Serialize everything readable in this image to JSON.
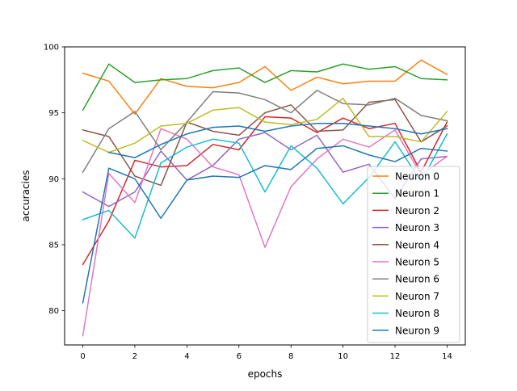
{
  "chart_data": {
    "type": "line",
    "title": "",
    "xlabel": "epochs",
    "ylabel": "accuracies",
    "xlim": [
      -0.7,
      14.7
    ],
    "ylim": [
      77.4,
      100.0
    ],
    "x": [
      0,
      1,
      2,
      3,
      4,
      5,
      6,
      7,
      8,
      9,
      10,
      11,
      12,
      13,
      14
    ],
    "xticks": [
      0,
      2,
      4,
      6,
      8,
      10,
      12,
      14
    ],
    "xtick_labels": [
      "0",
      "2",
      "4",
      "6",
      "8",
      "10",
      "12",
      "14"
    ],
    "yticks": [
      80,
      85,
      90,
      95,
      100
    ],
    "ytick_labels": [
      "80",
      "85",
      "90",
      "95",
      "100"
    ],
    "grid": false,
    "legend_position": "lower-right",
    "series": [
      {
        "name": "Neuron 0",
        "color": "#ff7f0e",
        "values": [
          98.0,
          97.4,
          94.9,
          97.6,
          97.0,
          96.9,
          97.3,
          98.5,
          96.7,
          97.7,
          97.2,
          97.4,
          97.4,
          99.0,
          97.9
        ]
      },
      {
        "name": "Neuron 1",
        "color": "#2ca02c",
        "values": [
          95.2,
          98.7,
          97.3,
          97.5,
          97.6,
          98.2,
          98.4,
          97.3,
          98.2,
          98.1,
          98.7,
          98.3,
          98.5,
          97.6,
          97.5
        ]
      },
      {
        "name": "Neuron 2",
        "color": "#d62728",
        "values": [
          83.5,
          86.8,
          91.4,
          90.9,
          91.0,
          92.6,
          92.2,
          94.7,
          94.6,
          93.5,
          94.6,
          93.8,
          94.2,
          90.5,
          94.3
        ]
      },
      {
        "name": "Neuron 3",
        "color": "#9467bd",
        "values": [
          89.0,
          87.9,
          89.0,
          92.1,
          89.9,
          91.0,
          93.0,
          93.5,
          92.2,
          93.3,
          90.5,
          91.1,
          88.5,
          91.5,
          91.7
        ]
      },
      {
        "name": "Neuron 4",
        "color": "#8c564b",
        "values": [
          93.7,
          93.2,
          90.2,
          89.5,
          94.3,
          93.6,
          93.3,
          95.0,
          95.6,
          93.6,
          93.7,
          95.8,
          96.0,
          92.8,
          94.0
        ]
      },
      {
        "name": "Neuron 5",
        "color": "#e377c2",
        "values": [
          78.1,
          90.4,
          88.2,
          93.8,
          93.0,
          90.9,
          90.3,
          84.8,
          89.4,
          91.5,
          93.0,
          92.4,
          93.7,
          90.3,
          91.7
        ]
      },
      {
        "name": "Neuron 6",
        "color": "#7f7f7f",
        "values": [
          90.5,
          93.8,
          95.1,
          92.2,
          94.3,
          96.6,
          96.5,
          96.0,
          95.0,
          96.7,
          95.7,
          95.6,
          96.1,
          94.8,
          94.4
        ]
      },
      {
        "name": "Neuron 7",
        "color": "#bcbd22",
        "values": [
          92.9,
          92.0,
          92.7,
          94.0,
          94.2,
          95.2,
          95.4,
          94.3,
          94.1,
          94.5,
          96.1,
          93.2,
          93.2,
          92.8,
          95.1
        ]
      },
      {
        "name": "Neuron 8",
        "color": "#17becf",
        "values": [
          86.9,
          87.6,
          85.5,
          91.2,
          92.4,
          93.0,
          92.7,
          89.0,
          92.5,
          90.8,
          88.1,
          90.1,
          92.8,
          89.8,
          93.4
        ]
      },
      {
        "name": "Neuron 9",
        "color": "#1f77b4",
        "values": [
          80.6,
          90.8,
          90.0,
          87.0,
          89.9,
          90.2,
          90.1,
          91.0,
          90.7,
          92.3,
          92.5,
          91.8,
          91.3,
          92.3,
          92.1
        ]
      },
      {
        "name": "",
        "color": "#1f77b4",
        "values": [
          null,
          92.0,
          91.6,
          92.6,
          93.4,
          93.9,
          94.0,
          93.6,
          94.0,
          94.2,
          94.2,
          94.0,
          93.8,
          93.4,
          93.8
        ]
      }
    ]
  }
}
